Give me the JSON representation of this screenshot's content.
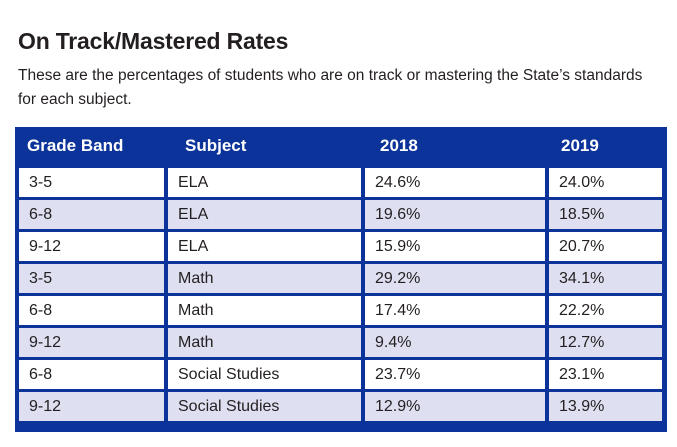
{
  "title": "On Track/Mastered Rates",
  "subtitle": "These are the percentages of students who are on track or mastering the State’s standards for each subject.",
  "table": {
    "headers": [
      "Grade Band",
      "Subject",
      "2018",
      "2019"
    ],
    "rows": [
      [
        "3-5",
        "ELA",
        "24.6%",
        "24.0%"
      ],
      [
        "6-8",
        "ELA",
        "19.6%",
        "18.5%"
      ],
      [
        "9-12",
        "ELA",
        "15.9%",
        "20.7%"
      ],
      [
        "3-5",
        "Math",
        "29.2%",
        "34.1%"
      ],
      [
        "6-8",
        "Math",
        "17.4%",
        "22.2%"
      ],
      [
        "9-12",
        "Math",
        "9.4%",
        "12.7%"
      ],
      [
        "6-8",
        "Social Studies",
        "23.7%",
        "23.1%"
      ],
      [
        "9-12",
        "Social Studies",
        "12.9%",
        "13.9%"
      ]
    ]
  },
  "colors": {
    "header_bg": "#0c3399",
    "header_text": "#ffffff",
    "row_alt_bg": "#dedff0",
    "row_bg": "#ffffff"
  }
}
